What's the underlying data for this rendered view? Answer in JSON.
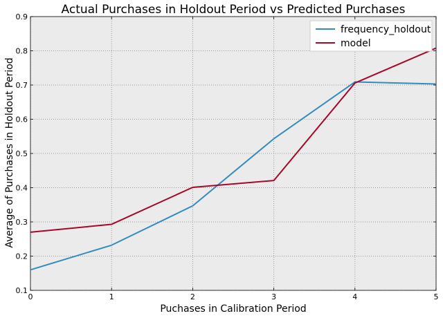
{
  "chart_data": {
    "type": "line",
    "title": "Actual Purchases in Holdout Period vs Predicted Purchases",
    "xlabel": "Puchases in Calibration Period",
    "ylabel": "Average of Purchases in Holdout Period",
    "x": [
      0,
      1,
      2,
      3,
      4,
      5
    ],
    "xlim": [
      0,
      5
    ],
    "ylim": [
      0.1,
      0.9
    ],
    "xticks": [
      "0",
      "1",
      "2",
      "3",
      "4",
      "5"
    ],
    "yticks": [
      "0.1",
      "0.2",
      "0.3",
      "0.4",
      "0.5",
      "0.6",
      "0.7",
      "0.8",
      "0.9"
    ],
    "grid": true,
    "legend_position": "top-right",
    "background_color": "#ebebeb",
    "series": [
      {
        "name": "frequency_holdout",
        "color": "#348abd",
        "values": [
          0.16,
          0.232,
          0.347,
          0.543,
          0.709,
          0.703
        ]
      },
      {
        "name": "model",
        "color": "#a60628",
        "values": [
          0.27,
          0.293,
          0.401,
          0.421,
          0.706,
          0.808
        ]
      }
    ]
  }
}
